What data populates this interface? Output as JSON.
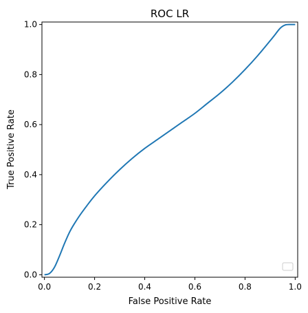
{
  "chart_data": {
    "type": "line",
    "title": "ROC LR",
    "xlabel": "False Positive Rate",
    "ylabel": "True Positive Rate",
    "xlim": [
      -0.01,
      1.01
    ],
    "ylim": [
      -0.01,
      1.01
    ],
    "grid": false,
    "legend": {
      "placement": "bottom-right",
      "entries": [
        ""
      ]
    },
    "x_ticks": [
      "0.0",
      "0.2",
      "0.4",
      "0.6",
      "0.8",
      "1.0"
    ],
    "y_ticks": [
      "0.0",
      "0.2",
      "0.4",
      "0.6",
      "0.8",
      "1.0"
    ],
    "series": [
      {
        "color": "#1f77b4",
        "x": [
          0.0,
          0.02,
          0.04,
          0.06,
          0.08,
          0.1,
          0.12,
          0.15,
          0.2,
          0.25,
          0.3,
          0.35,
          0.4,
          0.45,
          0.5,
          0.55,
          0.6,
          0.65,
          0.7,
          0.75,
          0.8,
          0.85,
          0.9,
          0.92,
          0.94,
          0.96,
          0.98,
          1.0
        ],
        "y": [
          0.0,
          0.005,
          0.03,
          0.075,
          0.125,
          0.17,
          0.205,
          0.25,
          0.315,
          0.37,
          0.42,
          0.465,
          0.505,
          0.54,
          0.575,
          0.61,
          0.645,
          0.685,
          0.725,
          0.77,
          0.82,
          0.875,
          0.935,
          0.96,
          0.985,
          0.998,
          1.0,
          1.0
        ]
      }
    ]
  }
}
